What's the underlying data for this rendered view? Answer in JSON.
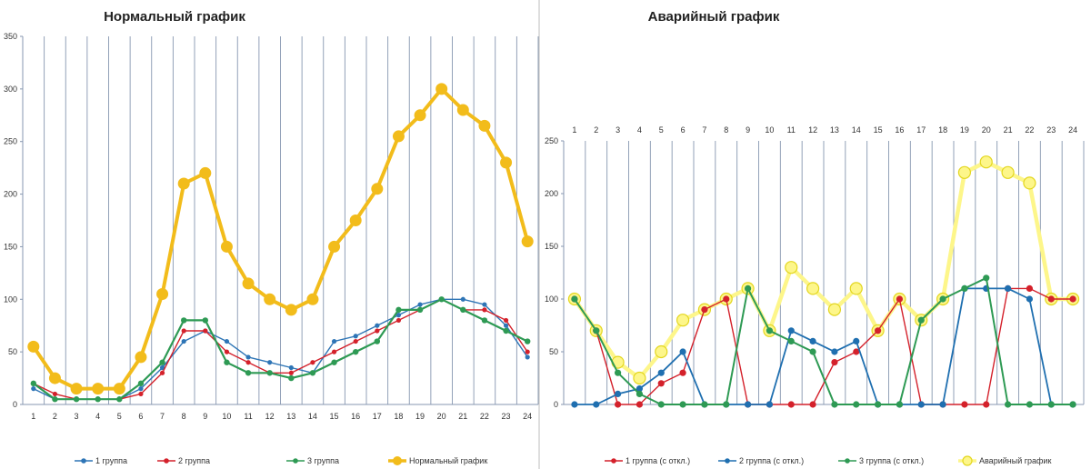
{
  "chart_data": [
    {
      "type": "line",
      "title": "Нормальный график",
      "categories": [
        "1",
        "2",
        "3",
        "4",
        "5",
        "6",
        "7",
        "8",
        "9",
        "10",
        "11",
        "12",
        "13",
        "14",
        "15",
        "16",
        "17",
        "18",
        "19",
        "20",
        "21",
        "22",
        "23",
        "24"
      ],
      "ylim": [
        0,
        350
      ],
      "yticks": [
        "0",
        "50",
        "100",
        "150",
        "200",
        "250",
        "300",
        "350"
      ],
      "grid": "vertical",
      "legend_position": "bottom",
      "series": [
        {
          "name": "1 группа",
          "color": "#2e75b6",
          "values": [
            15,
            5,
            5,
            5,
            5,
            15,
            35,
            60,
            70,
            60,
            45,
            40,
            35,
            30,
            60,
            65,
            75,
            85,
            95,
            100,
            100,
            95,
            75,
            45
          ]
        },
        {
          "name": "2 группа",
          "color": "#d4212b",
          "values": [
            20,
            10,
            5,
            5,
            5,
            10,
            30,
            70,
            70,
            50,
            40,
            30,
            30,
            40,
            50,
            60,
            70,
            80,
            90,
            100,
            90,
            90,
            80,
            50
          ]
        },
        {
          "name": "3 группа",
          "color": "#2e9a54",
          "values": [
            20,
            5,
            5,
            5,
            5,
            20,
            40,
            80,
            80,
            40,
            30,
            30,
            25,
            30,
            40,
            50,
            60,
            90,
            90,
            100,
            90,
            80,
            70,
            60
          ]
        },
        {
          "name": "Нормальный график",
          "color": "#f2bc1b",
          "values": [
            55,
            25,
            15,
            15,
            15,
            45,
            105,
            210,
            220,
            150,
            115,
            100,
            90,
            100,
            150,
            175,
            205,
            255,
            275,
            300,
            280,
            265,
            230,
            155
          ]
        }
      ]
    },
    {
      "type": "line",
      "title": "Аварийный график",
      "categories": [
        "1",
        "2",
        "3",
        "4",
        "5",
        "6",
        "7",
        "8",
        "9",
        "10",
        "11",
        "12",
        "13",
        "14",
        "15",
        "16",
        "17",
        "18",
        "19",
        "20",
        "21",
        "22",
        "23",
        "24"
      ],
      "ylim": [
        0,
        250
      ],
      "yticks": [
        "0",
        "50",
        "100",
        "150",
        "200",
        "250"
      ],
      "grid": "vertical",
      "x_axis_labels": "top",
      "legend_position": "bottom",
      "series": [
        {
          "name": "1 группа (с откл.)",
          "color": "#d4212b",
          "values": [
            100,
            70,
            0,
            0,
            20,
            30,
            90,
            100,
            0,
            0,
            0,
            0,
            40,
            50,
            70,
            100,
            0,
            0,
            0,
            0,
            110,
            110,
            100,
            100
          ]
        },
        {
          "name": "2 группа (с откл.)",
          "color": "#1f6fb0",
          "values": [
            0,
            0,
            10,
            15,
            30,
            50,
            0,
            0,
            0,
            0,
            70,
            60,
            50,
            60,
            0,
            0,
            0,
            0,
            110,
            110,
            110,
            100,
            0,
            0
          ]
        },
        {
          "name": "3 группа (с откл.)",
          "color": "#2e9a54",
          "values": [
            100,
            70,
            30,
            10,
            0,
            0,
            0,
            0,
            110,
            70,
            60,
            50,
            0,
            0,
            0,
            0,
            80,
            100,
            110,
            120,
            0,
            0,
            0,
            0
          ]
        },
        {
          "name": "Аварийный график",
          "color": "#fdf68a",
          "marker_edge": "#e3d61e",
          "values": [
            100,
            70,
            40,
            25,
            50,
            80,
            90,
            100,
            110,
            70,
            130,
            110,
            90,
            110,
            70,
            100,
            80,
            100,
            220,
            230,
            220,
            210,
            100,
            100
          ]
        }
      ]
    }
  ]
}
